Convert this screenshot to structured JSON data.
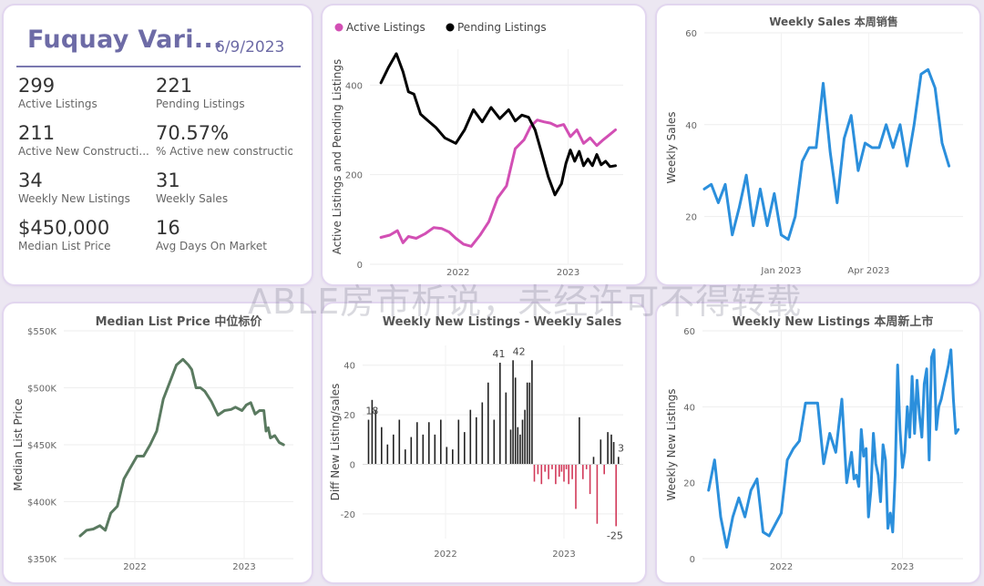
{
  "kpi": {
    "title": "Fuquay Vari...",
    "date": "6/9/2023",
    "items": [
      {
        "value": "299",
        "label": "Active Listings"
      },
      {
        "value": "221",
        "label": "Pending Listings"
      },
      {
        "value": "211",
        "label": "Active New Constructi..."
      },
      {
        "value": "70.57%",
        "label": "% Active new constructions"
      },
      {
        "value": "34",
        "label": "Weekly New Listings"
      },
      {
        "value": "31",
        "label": "Weekly Sales"
      },
      {
        "value": "$450,000",
        "label": "Median List Price"
      },
      {
        "value": "16",
        "label": "Avg Days On Market"
      }
    ]
  },
  "watermark": "ABLE房市析说，未经许可不得转载",
  "chart_data": [
    {
      "type": "line",
      "title": "",
      "xlabel": "",
      "ylabel": "Active Listings and Pending Listings",
      "legend_position": "top-left",
      "xlim": [
        2021.2,
        2023.5
      ],
      "ylim": [
        0,
        480
      ],
      "xticks": [
        {
          "v": 2022,
          "label": "2022"
        },
        {
          "v": 2023,
          "label": "2023"
        }
      ],
      "yticks": [
        {
          "v": 0,
          "label": "0"
        },
        {
          "v": 200,
          "label": "200"
        },
        {
          "v": 400,
          "label": "400"
        }
      ],
      "series": [
        {
          "name": "Active Listings",
          "color": "#d24fb4",
          "x": [
            2021.3,
            2021.38,
            2021.45,
            2021.5,
            2021.55,
            2021.62,
            2021.7,
            2021.78,
            2021.85,
            2021.92,
            2021.98,
            2022.05,
            2022.12,
            2022.2,
            2022.28,
            2022.36,
            2022.44,
            2022.52,
            2022.6,
            2022.66,
            2022.72,
            2022.78,
            2022.84,
            2022.9,
            2022.96,
            2023.02,
            2023.08,
            2023.14,
            2023.2,
            2023.26,
            2023.32,
            2023.38,
            2023.43
          ],
          "y": [
            60,
            65,
            75,
            48,
            62,
            58,
            68,
            82,
            80,
            72,
            58,
            45,
            40,
            65,
            95,
            148,
            175,
            258,
            278,
            308,
            322,
            318,
            315,
            308,
            312,
            285,
            300,
            270,
            282,
            265,
            278,
            290,
            300
          ]
        },
        {
          "name": "Pending Listings",
          "color": "#000000",
          "x": [
            2021.3,
            2021.37,
            2021.44,
            2021.5,
            2021.55,
            2021.6,
            2021.66,
            2021.72,
            2021.8,
            2021.88,
            2021.98,
            2022.06,
            2022.14,
            2022.22,
            2022.3,
            2022.38,
            2022.46,
            2022.52,
            2022.58,
            2022.64,
            2022.7,
            2022.76,
            2022.82,
            2022.88,
            2022.94,
            2022.98,
            2023.02,
            2023.06,
            2023.1,
            2023.14,
            2023.18,
            2023.22,
            2023.26,
            2023.3,
            2023.34,
            2023.38,
            2023.43
          ],
          "y": [
            405,
            440,
            470,
            430,
            385,
            380,
            335,
            322,
            305,
            282,
            270,
            300,
            345,
            318,
            350,
            325,
            345,
            320,
            333,
            328,
            300,
            248,
            195,
            155,
            180,
            225,
            255,
            230,
            252,
            220,
            235,
            220,
            245,
            222,
            230,
            218,
            220
          ]
        }
      ]
    },
    {
      "type": "line",
      "title": "Weekly Sales 本周销售",
      "xlabel": "",
      "ylabel": "Weekly Sales",
      "xlim": [
        2022.78,
        2023.52
      ],
      "ylim": [
        10,
        60
      ],
      "xticks": [
        {
          "v": 2023.0,
          "label": "Jan 2023"
        },
        {
          "v": 2023.25,
          "label": "Apr 2023"
        }
      ],
      "yticks": [
        {
          "v": 20,
          "label": "20"
        },
        {
          "v": 40,
          "label": "40"
        },
        {
          "v": 60,
          "label": "60"
        }
      ],
      "series": [
        {
          "name": "",
          "color": "#2b8fdc",
          "x": [
            2022.78,
            2022.8,
            2022.82,
            2022.84,
            2022.86,
            2022.88,
            2022.9,
            2022.92,
            2022.94,
            2022.96,
            2022.98,
            2023.0,
            2023.02,
            2023.04,
            2023.06,
            2023.08,
            2023.1,
            2023.12,
            2023.14,
            2023.16,
            2023.18,
            2023.2,
            2023.22,
            2023.24,
            2023.26,
            2023.28,
            2023.3,
            2023.32,
            2023.34,
            2023.36,
            2023.38,
            2023.4,
            2023.42,
            2023.44,
            2023.46,
            2023.48
          ],
          "y": [
            26,
            27,
            23,
            27,
            16,
            22,
            29,
            18,
            26,
            18,
            25,
            16,
            15,
            20,
            32,
            35,
            35,
            49,
            34,
            23,
            37,
            42,
            30,
            36,
            35,
            35,
            40,
            35,
            40,
            31,
            40,
            51,
            52,
            48,
            36,
            31
          ]
        }
      ]
    },
    {
      "type": "line",
      "title": "Median List Price  中位标价",
      "xlabel": "",
      "ylabel": "Median List Price",
      "xlim": [
        2021.35,
        2023.45
      ],
      "ylim": [
        350000,
        550000
      ],
      "xticks": [
        {
          "v": 2022,
          "label": "2022"
        },
        {
          "v": 2023,
          "label": "2023"
        }
      ],
      "yticks": [
        {
          "v": 350000,
          "label": "$350K"
        },
        {
          "v": 400000,
          "label": "$400K"
        },
        {
          "v": 450000,
          "label": "$450K"
        },
        {
          "v": 500000,
          "label": "$500K"
        },
        {
          "v": 550000,
          "label": "$550K"
        }
      ],
      "series": [
        {
          "name": "",
          "color": "#5a7a60",
          "x": [
            2021.5,
            2021.56,
            2021.62,
            2021.68,
            2021.73,
            2021.78,
            2021.84,
            2021.9,
            2021.96,
            2022.02,
            2022.08,
            2022.14,
            2022.2,
            2022.26,
            2022.32,
            2022.38,
            2022.44,
            2022.49,
            2022.52,
            2022.56,
            2022.6,
            2022.64,
            2022.7,
            2022.76,
            2022.82,
            2022.88,
            2022.92,
            2022.98,
            2023.02,
            2023.06,
            2023.1,
            2023.14,
            2023.18,
            2023.2,
            2023.22,
            2023.24,
            2023.28,
            2023.32,
            2023.36
          ],
          "y": [
            370000,
            375000,
            376000,
            379000,
            375000,
            390000,
            396000,
            420000,
            430000,
            440000,
            440000,
            450000,
            462000,
            490000,
            505000,
            520000,
            525000,
            520000,
            516000,
            500000,
            500000,
            497000,
            488000,
            476000,
            480000,
            481000,
            483000,
            480000,
            485000,
            487000,
            477000,
            480000,
            480000,
            462000,
            465000,
            456000,
            458000,
            452000,
            450000
          ]
        }
      ]
    },
    {
      "type": "bar",
      "title": "Weekly New Listings - Weekly Sales",
      "xlabel": "",
      "ylabel": "Diff New Listing/sales",
      "xlim": [
        2021.3,
        2023.5
      ],
      "ylim": [
        -30,
        48
      ],
      "xticks": [
        {
          "v": 2022,
          "label": "2022"
        },
        {
          "v": 2023,
          "label": "2023"
        }
      ],
      "yticks": [
        {
          "v": -20,
          "label": "-20"
        },
        {
          "v": 0,
          "label": "0"
        },
        {
          "v": 20,
          "label": "20"
        },
        {
          "v": 40,
          "label": "40"
        }
      ],
      "annotations": [
        {
          "x": 2021.38,
          "y": 18,
          "label": "18"
        },
        {
          "x": 2022.45,
          "y": 41,
          "label": "41"
        },
        {
          "x": 2022.62,
          "y": 42,
          "label": "42"
        },
        {
          "x": 2023.43,
          "y": -25,
          "label": "-25"
        },
        {
          "x": 2023.45,
          "y": 3,
          "label": "3"
        }
      ],
      "x": [
        2021.35,
        2021.38,
        2021.41,
        2021.46,
        2021.51,
        2021.56,
        2021.61,
        2021.66,
        2021.71,
        2021.76,
        2021.81,
        2021.86,
        2021.91,
        2021.96,
        2022.01,
        2022.06,
        2022.11,
        2022.16,
        2022.21,
        2022.26,
        2022.31,
        2022.36,
        2022.41,
        2022.46,
        2022.51,
        2022.55,
        2022.57,
        2022.59,
        2022.61,
        2022.63,
        2022.65,
        2022.67,
        2022.69,
        2022.71,
        2022.73,
        2022.75,
        2022.78,
        2022.81,
        2022.84,
        2022.87,
        2022.9,
        2022.93,
        2022.96,
        2022.98,
        2023.0,
        2023.02,
        2023.04,
        2023.07,
        2023.1,
        2023.13,
        2023.16,
        2023.19,
        2023.22,
        2023.25,
        2023.28,
        2023.31,
        2023.34,
        2023.37,
        2023.4,
        2023.42,
        2023.44,
        2023.46
      ],
      "values": [
        18,
        26,
        22,
        15,
        8,
        12,
        18,
        6,
        11,
        17,
        12,
        17,
        12,
        18,
        7,
        6,
        18,
        13,
        22,
        19,
        25,
        33,
        18,
        41,
        29,
        14,
        42,
        35,
        15,
        12,
        18,
        22,
        33,
        33,
        42,
        -7,
        -4,
        -8,
        -3,
        -6,
        -2,
        -8,
        -5,
        -3,
        -7,
        -2,
        -8,
        -6,
        -18,
        19,
        -6,
        -2,
        -12,
        3,
        -24,
        10,
        -4,
        13,
        12,
        9,
        -25,
        3
      ]
    },
    {
      "type": "line",
      "title": "Weekly New Listings  本周新上市",
      "xlabel": "",
      "ylabel": "Weekly New Listings",
      "xlim": [
        2021.35,
        2023.5
      ],
      "ylim": [
        0,
        60
      ],
      "xticks": [
        {
          "v": 2022,
          "label": "2022"
        },
        {
          "v": 2023,
          "label": "2023"
        }
      ],
      "yticks": [
        {
          "v": 0,
          "label": "0"
        },
        {
          "v": 20,
          "label": "20"
        },
        {
          "v": 40,
          "label": "40"
        },
        {
          "v": 60,
          "label": "60"
        }
      ],
      "series": [
        {
          "name": "",
          "color": "#2b8fdc",
          "x": [
            2021.4,
            2021.45,
            2021.5,
            2021.55,
            2021.6,
            2021.65,
            2021.7,
            2021.75,
            2021.8,
            2021.85,
            2021.9,
            2021.95,
            2022.0,
            2022.05,
            2022.1,
            2022.15,
            2022.2,
            2022.25,
            2022.3,
            2022.35,
            2022.4,
            2022.45,
            2022.5,
            2022.54,
            2022.58,
            2022.6,
            2022.62,
            2022.64,
            2022.66,
            2022.68,
            2022.7,
            2022.72,
            2022.74,
            2022.76,
            2022.78,
            2022.8,
            2022.82,
            2022.84,
            2022.86,
            2022.88,
            2022.9,
            2022.92,
            2022.94,
            2022.96,
            2022.98,
            2023.0,
            2023.02,
            2023.04,
            2023.06,
            2023.08,
            2023.1,
            2023.12,
            2023.14,
            2023.16,
            2023.18,
            2023.2,
            2023.22,
            2023.24,
            2023.26,
            2023.28,
            2023.3,
            2023.32,
            2023.34,
            2023.36,
            2023.38,
            2023.4,
            2023.42,
            2023.44,
            2023.46
          ],
          "y": [
            18,
            26,
            11,
            3,
            11,
            16,
            11,
            18,
            21,
            7,
            6,
            9,
            12,
            26,
            29,
            31,
            41,
            41,
            41,
            25,
            33,
            28,
            42,
            20,
            28,
            21,
            22,
            19,
            34,
            27,
            29,
            11,
            18,
            33,
            25,
            22,
            15,
            30,
            26,
            8,
            12,
            7,
            22,
            51,
            34,
            24,
            28,
            40,
            32,
            48,
            33,
            47,
            38,
            32,
            46,
            50,
            26,
            53,
            55,
            34,
            40,
            42,
            45,
            48,
            51,
            55,
            42,
            33,
            34
          ]
        }
      ]
    }
  ]
}
